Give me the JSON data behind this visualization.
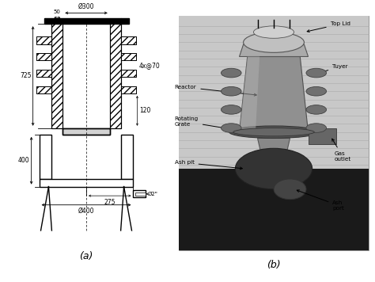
{
  "fig_width": 4.74,
  "fig_height": 3.56,
  "background": "#ffffff",
  "label_a": "(a)",
  "label_b": "(b)",
  "drawing": {
    "dim_300": "Ø300",
    "dim_50": "50",
    "dim_725": "725",
    "dim_4x70": "4x@70",
    "dim_120": "120",
    "dim_400_h": "400",
    "dim_275": "275",
    "dim_400_d": "Ø400",
    "dim_phi2": "Ø2\""
  },
  "photo_labels": {
    "top_lid": "Top Lid",
    "reactor": "Reactor",
    "tuyer": "Tuyer",
    "rotating_grate": "Rotating\nGrate",
    "gas_outlet": "Gas\noutlet",
    "ash_pit": "Ash pit",
    "ash_port": "Ash\nport"
  }
}
